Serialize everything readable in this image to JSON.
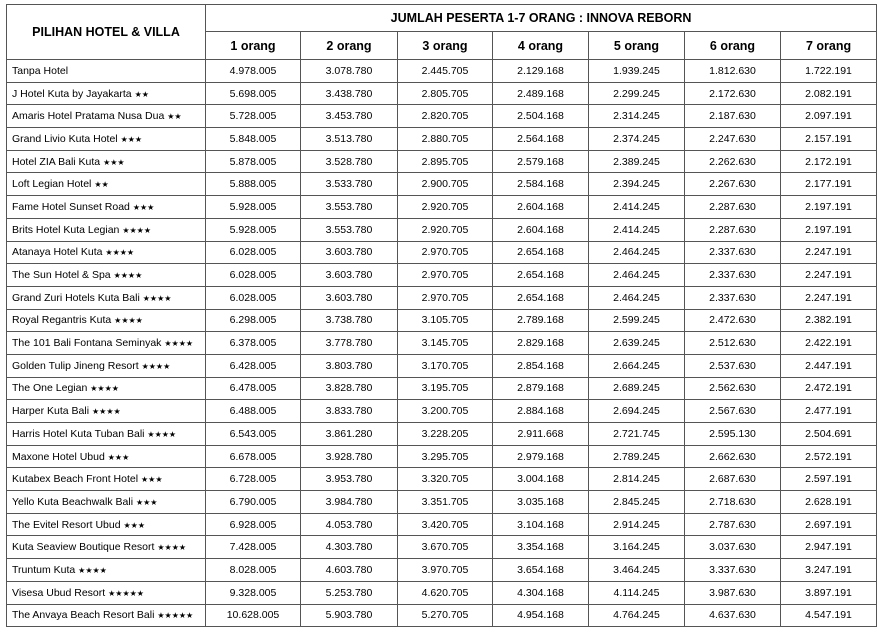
{
  "header": {
    "hotel_column": "PILIHAN HOTEL & VILLA",
    "group_title": "JUMLAH PESERTA 1-7 ORANG : INNOVA REBORN",
    "pax_columns": [
      "1 orang",
      "2 orang",
      "3 orang",
      "4 orang",
      "5 orang",
      "6 orang",
      "7 orang"
    ]
  },
  "rows": [
    {
      "name": "Tanpa Hotel",
      "stars": "",
      "prices": [
        "4.978.005",
        "3.078.780",
        "2.445.705",
        "2.129.168",
        "1.939.245",
        "1.812.630",
        "1.722.191"
      ]
    },
    {
      "name": "J Hotel Kuta by Jayakarta",
      "stars": "★★",
      "prices": [
        "5.698.005",
        "3.438.780",
        "2.805.705",
        "2.489.168",
        "2.299.245",
        "2.172.630",
        "2.082.191"
      ]
    },
    {
      "name": "Amaris Hotel Pratama Nusa Dua",
      "stars": "★★",
      "prices": [
        "5.728.005",
        "3.453.780",
        "2.820.705",
        "2.504.168",
        "2.314.245",
        "2.187.630",
        "2.097.191"
      ]
    },
    {
      "name": "Grand Livio Kuta Hotel",
      "stars": "★★★",
      "prices": [
        "5.848.005",
        "3.513.780",
        "2.880.705",
        "2.564.168",
        "2.374.245",
        "2.247.630",
        "2.157.191"
      ]
    },
    {
      "name": "Hotel ZIA Bali Kuta",
      "stars": "★★★",
      "prices": [
        "5.878.005",
        "3.528.780",
        "2.895.705",
        "2.579.168",
        "2.389.245",
        "2.262.630",
        "2.172.191"
      ]
    },
    {
      "name": "Loft Legian Hotel",
      "stars": "★★",
      "prices": [
        "5.888.005",
        "3.533.780",
        "2.900.705",
        "2.584.168",
        "2.394.245",
        "2.267.630",
        "2.177.191"
      ]
    },
    {
      "name": "Fame Hotel Sunset Road",
      "stars": "★★★",
      "prices": [
        "5.928.005",
        "3.553.780",
        "2.920.705",
        "2.604.168",
        "2.414.245",
        "2.287.630",
        "2.197.191"
      ]
    },
    {
      "name": "Brits Hotel Kuta Legian",
      "stars": "★★★★",
      "prices": [
        "5.928.005",
        "3.553.780",
        "2.920.705",
        "2.604.168",
        "2.414.245",
        "2.287.630",
        "2.197.191"
      ]
    },
    {
      "name": "Atanaya Hotel Kuta",
      "stars": "★★★★",
      "prices": [
        "6.028.005",
        "3.603.780",
        "2.970.705",
        "2.654.168",
        "2.464.245",
        "2.337.630",
        "2.247.191"
      ]
    },
    {
      "name": "The Sun Hotel & Spa",
      "stars": "★★★★",
      "prices": [
        "6.028.005",
        "3.603.780",
        "2.970.705",
        "2.654.168",
        "2.464.245",
        "2.337.630",
        "2.247.191"
      ]
    },
    {
      "name": "Grand Zuri Hotels Kuta Bali",
      "stars": "★★★★",
      "prices": [
        "6.028.005",
        "3.603.780",
        "2.970.705",
        "2.654.168",
        "2.464.245",
        "2.337.630",
        "2.247.191"
      ]
    },
    {
      "name": "Royal Regantris Kuta",
      "stars": "★★★★",
      "prices": [
        "6.298.005",
        "3.738.780",
        "3.105.705",
        "2.789.168",
        "2.599.245",
        "2.472.630",
        "2.382.191"
      ]
    },
    {
      "name": "The 101 Bali Fontana Seminyak",
      "stars": "★★★★",
      "prices": [
        "6.378.005",
        "3.778.780",
        "3.145.705",
        "2.829.168",
        "2.639.245",
        "2.512.630",
        "2.422.191"
      ]
    },
    {
      "name": "Golden Tulip Jineng Resort",
      "stars": "★★★★",
      "prices": [
        "6.428.005",
        "3.803.780",
        "3.170.705",
        "2.854.168",
        "2.664.245",
        "2.537.630",
        "2.447.191"
      ]
    },
    {
      "name": "The One Legian",
      "stars": "★★★★",
      "prices": [
        "6.478.005",
        "3.828.780",
        "3.195.705",
        "2.879.168",
        "2.689.245",
        "2.562.630",
        "2.472.191"
      ]
    },
    {
      "name": "Harper Kuta Bali",
      "stars": "★★★★",
      "prices": [
        "6.488.005",
        "3.833.780",
        "3.200.705",
        "2.884.168",
        "2.694.245",
        "2.567.630",
        "2.477.191"
      ]
    },
    {
      "name": "Harris Hotel Kuta Tuban Bali",
      "stars": "★★★★",
      "prices": [
        "6.543.005",
        "3.861.280",
        "3.228.205",
        "2.911.668",
        "2.721.745",
        "2.595.130",
        "2.504.691"
      ]
    },
    {
      "name": "Maxone Hotel Ubud",
      "stars": "★★★",
      "prices": [
        "6.678.005",
        "3.928.780",
        "3.295.705",
        "2.979.168",
        "2.789.245",
        "2.662.630",
        "2.572.191"
      ]
    },
    {
      "name": "Kutabex Beach Front Hotel",
      "stars": "★★★",
      "prices": [
        "6.728.005",
        "3.953.780",
        "3.320.705",
        "3.004.168",
        "2.814.245",
        "2.687.630",
        "2.597.191"
      ]
    },
    {
      "name": "Yello Kuta Beachwalk Bali",
      "stars": "★★★",
      "prices": [
        "6.790.005",
        "3.984.780",
        "3.351.705",
        "3.035.168",
        "2.845.245",
        "2.718.630",
        "2.628.191"
      ]
    },
    {
      "name": "The Evitel Resort Ubud",
      "stars": "★★★",
      "prices": [
        "6.928.005",
        "4.053.780",
        "3.420.705",
        "3.104.168",
        "2.914.245",
        "2.787.630",
        "2.697.191"
      ]
    },
    {
      "name": "Kuta Seaview Boutique Resort",
      "stars": "★★★★",
      "prices": [
        "7.428.005",
        "4.303.780",
        "3.670.705",
        "3.354.168",
        "3.164.245",
        "3.037.630",
        "2.947.191"
      ]
    },
    {
      "name": "Truntum Kuta",
      "stars": "★★★★",
      "prices": [
        "8.028.005",
        "4.603.780",
        "3.970.705",
        "3.654.168",
        "3.464.245",
        "3.337.630",
        "3.247.191"
      ]
    },
    {
      "name": "Visesa Ubud Resort",
      "stars": "★★★★★",
      "prices": [
        "9.328.005",
        "5.253.780",
        "4.620.705",
        "4.304.168",
        "4.114.245",
        "3.987.630",
        "3.897.191"
      ]
    },
    {
      "name": "The Anvaya Beach Resort Bali",
      "stars": "★★★★★",
      "prices": [
        "10.628.005",
        "5.903.780",
        "5.270.705",
        "4.954.168",
        "4.764.245",
        "4.637.630",
        "4.547.191"
      ]
    }
  ]
}
